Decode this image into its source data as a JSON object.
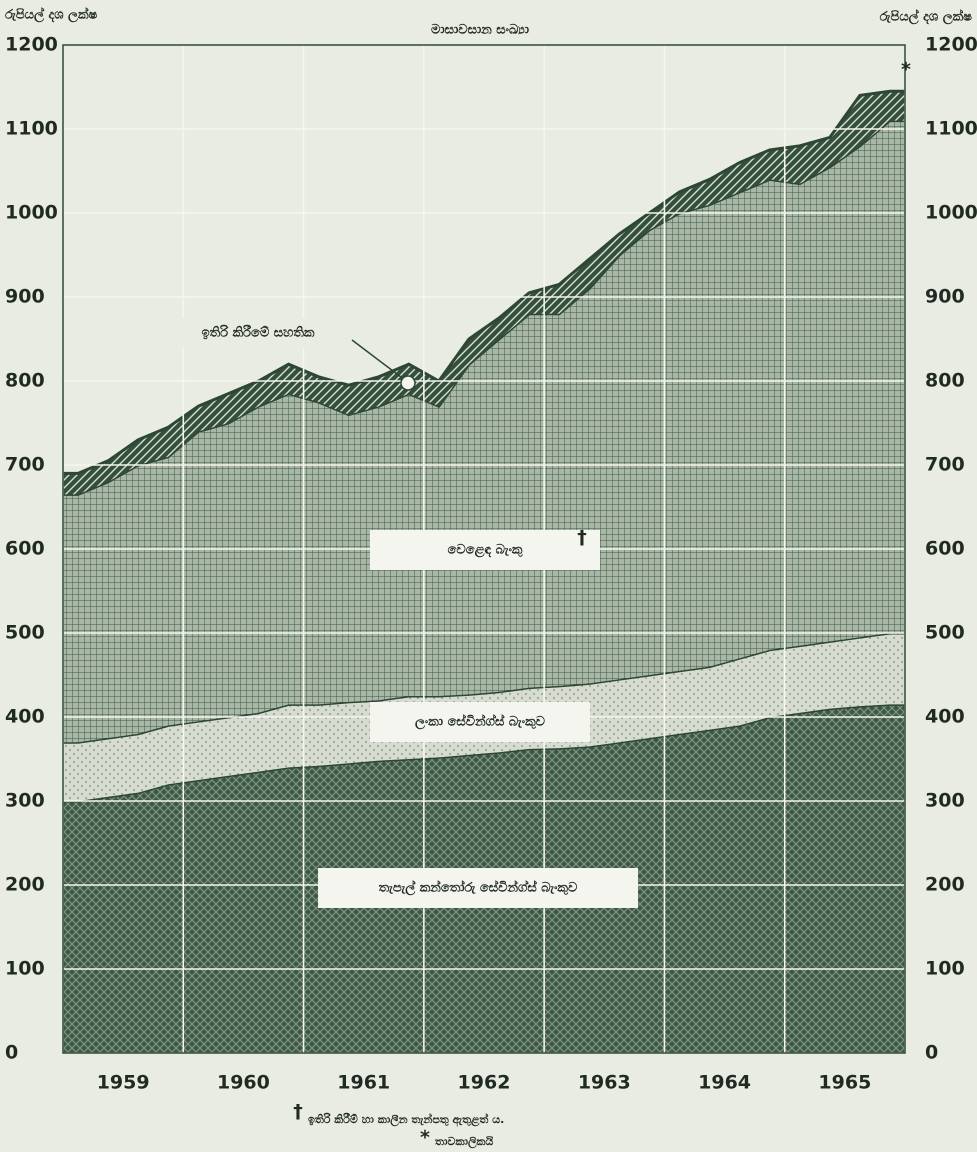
{
  "chart_data": {
    "type": "stacked_area",
    "title": "මාසාවසාන සංඛ්‍යා",
    "y_label": "රුපියල් දශ ලක්ෂ",
    "y2_label": "රුපියල් දශ ලක්ෂ",
    "categories": [
      null,
      null,
      "1959",
      null,
      null,
      null,
      "1960",
      null,
      null,
      null,
      "1961",
      null,
      null,
      null,
      "1962",
      null,
      null,
      null,
      "1963",
      null,
      null,
      null,
      "1964",
      null,
      null,
      null,
      "1965",
      null
    ],
    "series": [
      {
        "name": "තැපැල් කන්තෝරු සේවින්ග්ස් බැංකුව",
        "color": "#3c5744",
        "values": [
          300,
          305,
          310,
          320,
          325,
          330,
          335,
          340,
          342,
          345,
          348,
          350,
          352,
          355,
          358,
          362,
          363,
          365,
          370,
          375,
          380,
          385,
          390,
          400,
          405,
          410,
          413,
          415
        ]
      },
      {
        "name": "ලංකා සේවින්ග්ස් බැංකුව",
        "color": "#d6ddd0",
        "values": [
          70,
          70,
          70,
          70,
          70,
          70,
          70,
          75,
          73,
          73,
          72,
          75,
          73,
          72,
          72,
          73,
          74,
          75,
          75,
          75,
          75,
          75,
          80,
          80,
          80,
          80,
          82,
          85
        ]
      },
      {
        "name": "වෙළෙඳ බැංකු",
        "color": "#a9b8a6",
        "values": [
          295,
          305,
          320,
          320,
          345,
          350,
          365,
          370,
          360,
          342,
          350,
          360,
          345,
          393,
          420,
          445,
          443,
          470,
          505,
          530,
          545,
          550,
          555,
          560,
          550,
          565,
          585,
          610
        ]
      },
      {
        "name": "ඉතිරි කිරීමේ සහතික",
        "color": "#34503d",
        "values": [
          25,
          25,
          30,
          35,
          30,
          35,
          30,
          35,
          30,
          35,
          35,
          35,
          30,
          30,
          25,
          25,
          35,
          35,
          25,
          20,
          25,
          30,
          35,
          35,
          45,
          35,
          60,
          35
        ]
      }
    ],
    "ylim": [
      0,
      1200
    ],
    "yticks": [
      0,
      100,
      200,
      300,
      400,
      500,
      600,
      700,
      800,
      900,
      1000,
      1100,
      1200
    ],
    "grid": true,
    "notes": [
      {
        "marker": "†",
        "text": "ඉතිරි කිරීම් හා කාලීන තැන්පතු ඇතුළත් ය."
      },
      {
        "marker": "*",
        "text": "තාවකාලිකයි"
      }
    ]
  }
}
